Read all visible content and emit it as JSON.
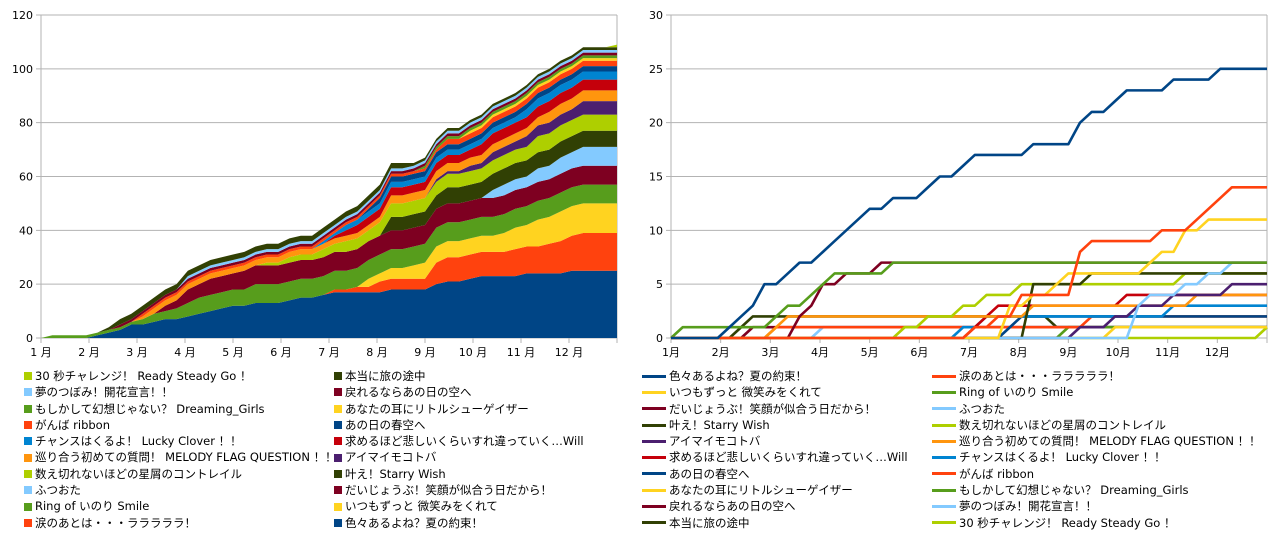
{
  "chart_data": [
    {
      "id": "stacked",
      "type": "area",
      "stacked": true,
      "title": "",
      "xlabel": "",
      "ylabel": "",
      "ylim": [
        0,
        120
      ],
      "yticks": [
        0,
        20,
        40,
        60,
        80,
        100,
        120
      ],
      "xtick_labels": [
        "1 月",
        "2 月",
        "3 月",
        "4 月",
        "5 月",
        "6 月",
        "7 月",
        "8 月",
        "9 月",
        "10 月",
        "11 月",
        "12 月"
      ],
      "grid": true,
      "legend_position": "bottom",
      "stack_order_bottom_to_top": [
        "色々あるよね？夏の約束！",
        "涙のあとは・・・ラララララ！",
        "いつもずっと 微笑みをくれて",
        "Ring of  いのり Smile",
        "だいじょうぶ！笑顔が似合う日だから！",
        "ふつおた",
        "叶え！Starry Wish",
        "数え切れないほどの星屑のコントレイル",
        "アイマイモコトバ",
        "巡り合う初めての質問！ MELODY FLAG QUESTION ！！",
        "求めるほど悲しいくらいすれ違っていく…Will",
        "チャンスはくるよ！ Lucky Clover ！！",
        "あの日の春空へ",
        "がんば ribbon",
        "あなたの耳にリトルシューゲイザー",
        "もしかして幻想じゃない？Dreaming_Girls",
        "戻れるならあの日の空へ",
        "夢のつぼみ！開花宣言！！",
        "本当に旅の途中",
        "30 秒チャレンジ！ Ready Steady Go ！"
      ],
      "legend_entries": [
        {
          "label": "30 秒チャレンジ！ Ready Steady Go ！",
          "color": "#aecf00"
        },
        {
          "label": "夢のつぼみ！開花宣言！！",
          "color": "#83caff"
        },
        {
          "label": "もしかして幻想じゃない？ Dreaming_Girls",
          "color": "#579d1c"
        },
        {
          "label": "がんば ribbon",
          "color": "#ff420e"
        },
        {
          "label": "チャンスはくるよ！  Lucky Clover ！！",
          "color": "#0084d1"
        },
        {
          "label": "巡り合う初めての質問！  MELODY FLAG QUESTION ！！",
          "color": "#ff950e"
        },
        {
          "label": "数え切れないほどの星屑のコントレイル",
          "color": "#aecf00"
        },
        {
          "label": "ふつおた",
          "color": "#83caff"
        },
        {
          "label": "Ring of  いのり Smile",
          "color": "#579d1c"
        },
        {
          "label": "涙のあとは・・・ラララララ！",
          "color": "#ff420e"
        },
        {
          "label": "本当に旅の途中",
          "color": "#314004"
        },
        {
          "label": "戻れるならあの日の空へ",
          "color": "#7e0021"
        },
        {
          "label": "あなたの耳にリトルシューゲイザー",
          "color": "#ffd320"
        },
        {
          "label": "あの日の春空へ",
          "color": "#004586"
        },
        {
          "label": "求めるほど悲しいくらいすれ違っていく…Will",
          "color": "#c5000b"
        },
        {
          "label": "アイマイモコトバ",
          "color": "#4b1f6f"
        },
        {
          "label": "叶え！Starry Wish",
          "color": "#314004"
        },
        {
          "label": "だいじょうぶ！笑顔が似合う日だから！",
          "color": "#7e0021"
        },
        {
          "label": "いつもずっと 微笑みをくれて",
          "color": "#ffd320"
        },
        {
          "label": "色々あるよね？夏の約束！",
          "color": "#004586"
        }
      ]
    },
    {
      "id": "lines",
      "type": "line",
      "title": "",
      "xlabel": "",
      "ylabel": "",
      "ylim": [
        0,
        30
      ],
      "yticks": [
        0,
        5,
        10,
        15,
        20,
        25,
        30
      ],
      "xtick_labels": [
        "1月",
        "2月",
        "3月",
        "4月",
        "5月",
        "6月",
        "7月",
        "8月",
        "9月",
        "10月",
        "11月",
        "12月"
      ],
      "grid": true,
      "legend_position": "bottom",
      "x_unit": "week (0-51), values are cumulative counts",
      "series": [
        {
          "name": "色々あるよね？夏の約束！",
          "color": "#004586",
          "changes": [
            [
              5,
              1
            ],
            [
              6,
              2
            ],
            [
              7,
              3
            ],
            [
              8,
              5
            ],
            [
              10,
              6
            ],
            [
              11,
              7
            ],
            [
              13,
              8
            ],
            [
              14,
              9
            ],
            [
              15,
              10
            ],
            [
              16,
              11
            ],
            [
              17,
              12
            ],
            [
              19,
              13
            ],
            [
              22,
              14
            ],
            [
              23,
              15
            ],
            [
              25,
              16
            ],
            [
              26,
              17
            ],
            [
              31,
              18
            ],
            [
              35,
              20
            ],
            [
              36,
              21
            ],
            [
              38,
              22
            ],
            [
              39,
              23
            ],
            [
              43,
              24
            ],
            [
              47,
              25
            ]
          ]
        },
        {
          "name": "涙のあとは・・・ラララララ！",
          "color": "#ff420e",
          "changes": [
            [
              26,
              1
            ],
            [
              28,
              2
            ],
            [
              30,
              4
            ],
            [
              35,
              8
            ],
            [
              36,
              9
            ],
            [
              42,
              10
            ],
            [
              45,
              11
            ],
            [
              46,
              12
            ],
            [
              47,
              13
            ],
            [
              48,
              14
            ]
          ]
        },
        {
          "name": "いつもずっと 微笑みをくれて",
          "color": "#ffd320",
          "changes": [
            [
              29,
              3
            ],
            [
              31,
              4
            ],
            [
              33,
              5
            ],
            [
              34,
              6
            ],
            [
              41,
              7
            ],
            [
              42,
              8
            ],
            [
              44,
              10
            ],
            [
              46,
              11
            ]
          ]
        },
        {
          "name": "Ring of  いのり Smile",
          "color": "#579d1c",
          "changes": [
            [
              1,
              1
            ],
            [
              9,
              2
            ],
            [
              10,
              3
            ],
            [
              11,
              3
            ],
            [
              12,
              4
            ],
            [
              13,
              5
            ],
            [
              14,
              6
            ],
            [
              19,
              7
            ]
          ]
        },
        {
          "name": "だいじょうぶ！笑顔が似合う日だから！",
          "color": "#7e0021",
          "changes": [
            [
              11,
              2
            ],
            [
              12,
              3
            ],
            [
              13,
              5
            ],
            [
              14,
              5
            ],
            [
              15,
              6
            ],
            [
              18,
              7
            ]
          ]
        },
        {
          "name": "ふつおた",
          "color": "#83caff",
          "changes": [
            [
              40,
              3
            ],
            [
              41,
              4
            ],
            [
              44,
              5
            ],
            [
              46,
              6
            ],
            [
              48,
              7
            ]
          ]
        },
        {
          "name": "叶え！Starry Wish",
          "color": "#314004",
          "changes": [
            [
              31,
              5
            ],
            [
              36,
              6
            ]
          ]
        },
        {
          "name": "数え切れないほどの星屑のコントレイル",
          "color": "#aecf00",
          "changes": [
            [
              20,
              1
            ],
            [
              22,
              2
            ],
            [
              25,
              3
            ],
            [
              27,
              4
            ],
            [
              30,
              5
            ],
            [
              44,
              6
            ]
          ]
        },
        {
          "name": "アイマイモコトバ",
          "color": "#4b1f6f",
          "changes": [
            [
              35,
              1
            ],
            [
              38,
              2
            ],
            [
              40,
              3
            ],
            [
              43,
              4
            ],
            [
              48,
              5
            ]
          ]
        },
        {
          "name": "巡り合う初めての質問！  MELODY FLAG QUESTION ！！",
          "color": "#ff950e",
          "changes": [
            [
              9,
              1
            ],
            [
              10,
              2
            ],
            [
              31,
              3
            ],
            [
              45,
              4
            ]
          ]
        },
        {
          "name": "求めるほど悲しいくらいすれ違っていく…Will",
          "color": "#c5000b",
          "changes": [
            [
              26,
              1
            ],
            [
              27,
              2
            ],
            [
              28,
              3
            ],
            [
              39,
              4
            ]
          ]
        },
        {
          "name": "チャンスはくるよ！  Lucky Clover ！！",
          "color": "#0084d1",
          "changes": [
            [
              25,
              1
            ],
            [
              27,
              2
            ],
            [
              43,
              3
            ]
          ]
        },
        {
          "name": "あの日の春空へ",
          "color": "#004586",
          "changes": [
            [
              29,
              1
            ],
            [
              30,
              2
            ]
          ]
        },
        {
          "name": "がんば ribbon",
          "color": "#ff420e",
          "changes": [
            [
              9,
              1
            ],
            [
              36,
              2
            ]
          ]
        },
        {
          "name": "あなたの耳にリトルシューゲイザー",
          "color": "#ffd320",
          "changes": [
            [
              38,
              1
            ]
          ]
        },
        {
          "name": "もしかして幻想じゃない？ Dreaming_Girls",
          "color": "#579d1c",
          "changes": [
            [
              34,
              1
            ]
          ]
        },
        {
          "name": "戻れるならあの日の空へ",
          "color": "#7e0021",
          "changes": [
            [
              7,
              1
            ]
          ]
        },
        {
          "name": "夢のつぼみ！開花宣言！！",
          "color": "#83caff",
          "changes": [
            [
              13,
              1
            ]
          ]
        },
        {
          "name": "本当に旅の途中",
          "color": "#314004",
          "changes": [
            [
              6,
              1
            ],
            [
              7,
              2
            ],
            [
              33,
              1
            ]
          ]
        },
        {
          "name": "30 秒チャレンジ！ Ready Steady Go ！",
          "color": "#aecf00",
          "changes": [
            [
              51,
              1
            ]
          ]
        }
      ],
      "legend_entries": [
        {
          "label": "色々あるよね？夏の約束！",
          "color": "#004586"
        },
        {
          "label": "いつもずっと 微笑みをくれて",
          "color": "#ffd320"
        },
        {
          "label": "だいじょうぶ！笑顔が似合う日だから！",
          "color": "#7e0021"
        },
        {
          "label": "叶え！Starry Wish",
          "color": "#314004"
        },
        {
          "label": "アイマイモコトバ",
          "color": "#4b1f6f"
        },
        {
          "label": "求めるほど悲しいくらいすれ違っていく…Will",
          "color": "#c5000b"
        },
        {
          "label": "あの日の春空へ",
          "color": "#004586"
        },
        {
          "label": "あなたの耳にリトルシューゲイザー",
          "color": "#ffd320"
        },
        {
          "label": "戻れるならあの日の空へ",
          "color": "#7e0021"
        },
        {
          "label": "本当に旅の途中",
          "color": "#314004"
        },
        {
          "label": "涙のあとは・・・ラララララ！",
          "color": "#ff420e"
        },
        {
          "label": "Ring of  いのり Smile",
          "color": "#579d1c"
        },
        {
          "label": "ふつおた",
          "color": "#83caff"
        },
        {
          "label": "数え切れないほどの星屑のコントレイル",
          "color": "#aecf00"
        },
        {
          "label": "巡り合う初めての質問！  MELODY FLAG QUESTION ！！",
          "color": "#ff950e"
        },
        {
          "label": "チャンスはくるよ！  Lucky Clover ！！",
          "color": "#0084d1"
        },
        {
          "label": "がんば ribbon",
          "color": "#ff420e"
        },
        {
          "label": "もしかして幻想じゃない？ Dreaming_Girls",
          "color": "#579d1c"
        },
        {
          "label": "夢のつぼみ！開花宣言！！",
          "color": "#83caff"
        },
        {
          "label": "30 秒チャレンジ！ Ready Steady Go ！",
          "color": "#aecf00"
        }
      ]
    }
  ]
}
